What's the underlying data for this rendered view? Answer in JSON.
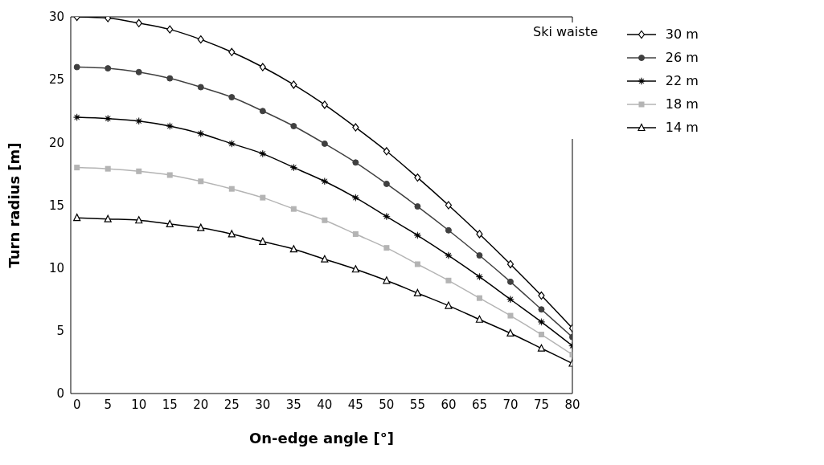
{
  "chart_data": {
    "type": "line",
    "xlabel": "On-edge angle [°]",
    "ylabel": "Turn radius  [m]",
    "legend_title": "Ski waiste",
    "legend": "top right",
    "x": [
      0,
      5,
      10,
      15,
      20,
      25,
      30,
      35,
      40,
      45,
      50,
      55,
      60,
      65,
      70,
      75,
      80
    ],
    "xlim": [
      -1,
      80
    ],
    "xticks": [
      0,
      5,
      10,
      15,
      20,
      25,
      30,
      35,
      40,
      45,
      50,
      55,
      60,
      65,
      70,
      75,
      80
    ],
    "ylim": [
      0,
      30
    ],
    "yticks": [
      0,
      5,
      10,
      15,
      20,
      25,
      30
    ],
    "grid": false,
    "line_style": "solid",
    "series": [
      {
        "name": "30 m",
        "color": "#000000",
        "marker": "diamond",
        "values": [
          30,
          29.9,
          29.5,
          29.0,
          28.2,
          27.2,
          26.0,
          24.6,
          23.0,
          21.2,
          19.3,
          17.2,
          15.0,
          12.7,
          10.3,
          7.8,
          5.2
        ]
      },
      {
        "name": "26 m",
        "color": "#404040",
        "marker": "circle",
        "values": [
          26,
          25.9,
          25.6,
          25.1,
          24.4,
          23.6,
          22.5,
          21.3,
          19.9,
          18.4,
          16.7,
          14.9,
          13.0,
          11.0,
          8.9,
          6.7,
          4.5
        ]
      },
      {
        "name": "22 m",
        "color": "#000000",
        "marker": "star",
        "values": [
          22,
          21.9,
          21.7,
          21.3,
          20.7,
          19.9,
          19.1,
          18.0,
          16.9,
          15.6,
          14.1,
          12.6,
          11.0,
          9.3,
          7.5,
          5.7,
          3.8
        ]
      },
      {
        "name": "18 m",
        "color": "#b4b4b4",
        "marker": "square",
        "values": [
          18,
          17.9,
          17.7,
          17.4,
          16.9,
          16.3,
          15.6,
          14.7,
          13.8,
          12.7,
          11.6,
          10.3,
          9.0,
          7.6,
          6.2,
          4.7,
          3.1
        ]
      },
      {
        "name": "14 m",
        "color": "#000000",
        "marker": "triangle",
        "values": [
          14,
          13.9,
          13.8,
          13.5,
          13.2,
          12.7,
          12.1,
          11.5,
          10.7,
          9.9,
          9.0,
          8.0,
          7.0,
          5.9,
          4.8,
          3.6,
          2.4
        ]
      }
    ]
  }
}
